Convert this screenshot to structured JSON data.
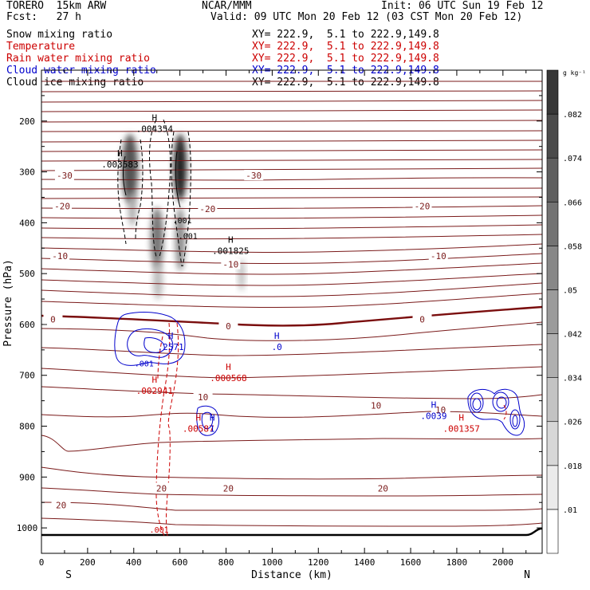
{
  "header": {
    "model": "TORERO  15km ARW",
    "org": "NCAR/MMM",
    "init": "Init: 06 UTC Sun 19 Feb 12",
    "fcst": "Fcst:   27 h",
    "valid": "Valid: 09 UTC Mon 20 Feb 12 (03 CST Mon 20 Feb 12)"
  },
  "fields": [
    {
      "name": "Snow mixing ratio",
      "xy": "XY= 222.9,  5.1 to 222.9,149.8",
      "color": "#000000"
    },
    {
      "name": "Temperature",
      "xy": "XY= 222.9,  5.1 to 222.9,149.8",
      "color": "#cc0000"
    },
    {
      "name": "Rain water mixing ratio",
      "xy": "XY= 222.9,  5.1 to 222.9,149.8",
      "color": "#cc0000"
    },
    {
      "name": "Cloud water mixing ratio",
      "xy": "XY= 222.9,  5.1 to 222.9,149.8",
      "color": "#0000cc"
    },
    {
      "name": "Cloud ice mixing ratio",
      "xy": "XY= 222.9,  5.1 to 222.9,149.8",
      "color": "#000000"
    }
  ],
  "colors": {
    "temperature": "#7a1a1a",
    "zero_isotherm": "#7a0d0d",
    "rain": "#cc0000",
    "cloud_water": "#0000cc",
    "ice_snow": "#000000",
    "terrain": "#000000"
  },
  "chart_data": {
    "type": "contour",
    "xlabel": "Distance (km)",
    "ylabel": "Pressure (hPa)",
    "xlim": [
      0,
      2170
    ],
    "ylim": [
      1050,
      100
    ],
    "x_ticks": [
      0,
      200,
      400,
      600,
      800,
      1000,
      1200,
      1400,
      1600,
      1800,
      2000
    ],
    "y_ticks": [
      200,
      300,
      400,
      500,
      600,
      700,
      800,
      900,
      1000
    ],
    "end_labels": {
      "left": "S",
      "right": "N"
    },
    "colorbar": {
      "unit": "g kg⁻¹",
      "ticks": [
        ".01",
        ".018",
        ".026",
        ".034",
        ".042",
        ".05",
        ".058",
        ".066",
        ".074",
        ".082"
      ],
      "levels": [
        0.01,
        0.018,
        0.026,
        0.034,
        0.042,
        0.05,
        0.058,
        0.066,
        0.074,
        0.082
      ]
    },
    "temperature_labels": [
      {
        "x": 100,
        "p": 307,
        "text": "-30"
      },
      {
        "x": 920,
        "p": 307,
        "text": "-30"
      },
      {
        "x": 90,
        "p": 367,
        "text": "-20"
      },
      {
        "x": 720,
        "p": 373,
        "text": "-20"
      },
      {
        "x": 1650,
        "p": 367,
        "text": "-20"
      },
      {
        "x": 80,
        "p": 465,
        "text": "-10"
      },
      {
        "x": 820,
        "p": 482,
        "text": "-10"
      },
      {
        "x": 1720,
        "p": 465,
        "text": "-10"
      },
      {
        "x": 50,
        "p": 590,
        "text": "0"
      },
      {
        "x": 810,
        "p": 603,
        "text": "0"
      },
      {
        "x": 1650,
        "p": 590,
        "text": "0"
      },
      {
        "x": 700,
        "p": 743,
        "text": "10"
      },
      {
        "x": 1450,
        "p": 759,
        "text": "10"
      },
      {
        "x": 1730,
        "p": 768,
        "text": "10"
      },
      {
        "x": 520,
        "p": 922,
        "text": "20"
      },
      {
        "x": 810,
        "p": 922,
        "text": "20"
      },
      {
        "x": 1480,
        "p": 922,
        "text": "20"
      },
      {
        "x": 85,
        "p": 955,
        "text": "20"
      }
    ],
    "max_labels": [
      {
        "x": 490,
        "p": 218,
        "text": ".004354",
        "color": "#000000"
      },
      {
        "x": 340,
        "p": 288,
        "text": ".003583",
        "color": "#000000"
      },
      {
        "x": 820,
        "p": 458,
        "text": ".001825",
        "color": "#000000"
      },
      {
        "x": 560,
        "p": 647,
        "text": ".2571",
        "color": "#0000cc"
      },
      {
        "x": 1020,
        "p": 647,
        "text": ".0",
        "color": "#0000cc"
      },
      {
        "x": 810,
        "p": 708,
        "text": ".000568",
        "color": "#cc0000"
      },
      {
        "x": 490,
        "p": 733,
        "text": ".002941",
        "color": "#cc0000"
      },
      {
        "x": 680,
        "p": 808,
        "text": ".00587",
        "color": "#cc0000"
      },
      {
        "x": 740,
        "p": 808,
        "text": "1",
        "color": "#0000cc"
      },
      {
        "x": 1700,
        "p": 783,
        "text": ".0039",
        "color": "#0000cc"
      },
      {
        "x": 1820,
        "p": 808,
        "text": ".001357",
        "color": "#cc0000"
      }
    ],
    "contour_labels": [
      {
        "x": 610,
        "p": 395,
        "text": ".001",
        "color": "#000000"
      },
      {
        "x": 635,
        "p": 425,
        "text": ".001",
        "color": "#000000"
      },
      {
        "x": 445,
        "p": 676,
        "text": ".001",
        "color": "#0000cc"
      },
      {
        "x": 510,
        "p": 1003,
        "text": ".001",
        "color": "#cc0000"
      }
    ]
  }
}
